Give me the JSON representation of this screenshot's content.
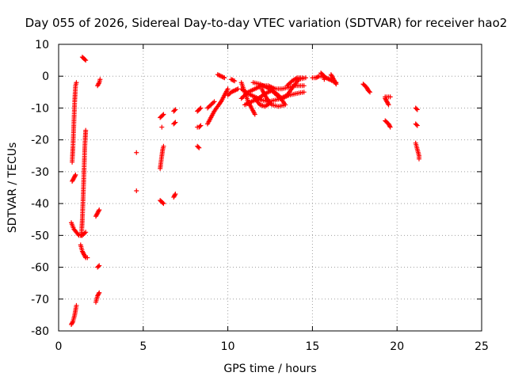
{
  "chart_data": {
    "type": "scatter",
    "title": "Day 055 of 2026, Sidereal Day-to-day VTEC variation (SDTVAR) for receiver hao2",
    "xlabel": "GPS time / hours",
    "ylabel": "SDTVAR / TECUs",
    "xlim": [
      0,
      25
    ],
    "ylim": [
      -80,
      10
    ],
    "xticks": [
      0,
      5,
      10,
      15,
      20,
      25
    ],
    "yticks": [
      10,
      0,
      -10,
      -20,
      -30,
      -40,
      -50,
      -60,
      -70,
      -80
    ],
    "grid": true,
    "marker": "+",
    "color": "#ff0000",
    "series": [
      {
        "name": "SDTVAR",
        "segments": [
          [
            [
              0.8,
              -27
            ],
            [
              0.85,
              -22
            ],
            [
              0.9,
              -15
            ],
            [
              0.95,
              -8
            ],
            [
              1.0,
              -3
            ],
            [
              1.05,
              -2
            ]
          ],
          [
            [
              0.8,
              -33
            ],
            [
              0.9,
              -32
            ],
            [
              1.0,
              -31
            ]
          ],
          [
            [
              0.75,
              -46
            ],
            [
              0.9,
              -48
            ],
            [
              1.05,
              -49
            ],
            [
              1.2,
              -50
            ],
            [
              1.4,
              -50
            ],
            [
              1.6,
              -49
            ]
          ],
          [
            [
              1.35,
              -50
            ],
            [
              1.4,
              -45
            ],
            [
              1.45,
              -38
            ],
            [
              1.5,
              -30
            ],
            [
              1.55,
              -22
            ],
            [
              1.6,
              -17
            ]
          ],
          [
            [
              1.3,
              -53
            ],
            [
              1.4,
              -55
            ],
            [
              1.5,
              -56
            ],
            [
              1.6,
              -57
            ],
            [
              1.7,
              -57
            ]
          ],
          [
            [
              0.75,
              -78
            ],
            [
              0.85,
              -77
            ],
            [
              0.95,
              -75
            ],
            [
              1.05,
              -72
            ]
          ],
          [
            [
              1.4,
              6
            ],
            [
              1.5,
              5.5
            ],
            [
              1.6,
              5
            ]
          ],
          [
            [
              2.3,
              -3
            ],
            [
              2.4,
              -2
            ],
            [
              2.45,
              -1
            ]
          ],
          [
            [
              2.2,
              -44
            ],
            [
              2.3,
              -43
            ],
            [
              2.4,
              -42
            ]
          ],
          [
            [
              2.3,
              -60
            ],
            [
              2.4,
              -59.5
            ]
          ],
          [
            [
              2.2,
              -71
            ],
            [
              2.3,
              -69
            ],
            [
              2.4,
              -68
            ]
          ],
          [
            [
              4.6,
              -24
            ]
          ],
          [
            [
              4.6,
              -36
            ]
          ],
          [
            [
              6.0,
              -13
            ],
            [
              6.1,
              -12.5
            ],
            [
              6.2,
              -12
            ]
          ],
          [
            [
              6.1,
              -16
            ]
          ],
          [
            [
              6.0,
              -29
            ],
            [
              6.05,
              -27
            ],
            [
              6.1,
              -25
            ],
            [
              6.15,
              -23
            ],
            [
              6.2,
              -22
            ]
          ],
          [
            [
              6.0,
              -39
            ],
            [
              6.1,
              -39.5
            ],
            [
              6.2,
              -40
            ]
          ],
          [
            [
              6.8,
              -11
            ],
            [
              6.9,
              -10.5
            ]
          ],
          [
            [
              6.8,
              -15
            ],
            [
              6.9,
              -14.5
            ]
          ],
          [
            [
              6.8,
              -38
            ],
            [
              6.9,
              -37
            ]
          ],
          [
            [
              8.2,
              -11
            ],
            [
              8.3,
              -10.5
            ],
            [
              8.4,
              -10
            ]
          ],
          [
            [
              8.2,
              -16
            ],
            [
              8.3,
              -16
            ],
            [
              8.4,
              -15.5
            ]
          ],
          [
            [
              8.2,
              -22
            ],
            [
              8.3,
              -22.5
            ]
          ],
          [
            [
              8.8,
              -15
            ],
            [
              9.0,
              -13
            ],
            [
              9.2,
              -11
            ],
            [
              9.4,
              -9.5
            ],
            [
              9.6,
              -8
            ],
            [
              9.8,
              -6
            ],
            [
              10.0,
              -4
            ]
          ],
          [
            [
              8.8,
              -10
            ],
            [
              9.0,
              -9
            ],
            [
              9.2,
              -8
            ]
          ],
          [
            [
              9.4,
              0.5
            ],
            [
              9.6,
              0
            ],
            [
              9.8,
              -0.5
            ]
          ],
          [
            [
              10.2,
              -1
            ],
            [
              10.4,
              -1.5
            ]
          ],
          [
            [
              10.0,
              -6
            ],
            [
              10.2,
              -5
            ],
            [
              10.4,
              -4.5
            ],
            [
              10.6,
              -4
            ]
          ],
          [
            [
              10.8,
              -2
            ],
            [
              11.0,
              -5
            ],
            [
              11.2,
              -8
            ],
            [
              11.4,
              -10
            ],
            [
              11.6,
              -12
            ]
          ],
          [
            [
              10.8,
              -7
            ],
            [
              11.2,
              -5
            ],
            [
              11.6,
              -4
            ],
            [
              12.0,
              -3
            ],
            [
              12.4,
              -3
            ],
            [
              12.8,
              -4
            ],
            [
              13.2,
              -4
            ],
            [
              13.6,
              -3.5
            ],
            [
              14.0,
              -3
            ],
            [
              14.5,
              -3
            ]
          ],
          [
            [
              10.8,
              -4
            ],
            [
              11.2,
              -5.5
            ],
            [
              11.6,
              -6.5
            ],
            [
              12.0,
              -7.5
            ],
            [
              12.4,
              -8
            ],
            [
              12.8,
              -7.5
            ],
            [
              13.2,
              -7
            ],
            [
              13.6,
              -6
            ],
            [
              14.0,
              -5.5
            ],
            [
              14.5,
              -5
            ]
          ],
          [
            [
              11.0,
              -9
            ],
            [
              11.4,
              -8
            ],
            [
              11.8,
              -7
            ],
            [
              12.2,
              -5.5
            ],
            [
              12.6,
              -4.5
            ],
            [
              13.0,
              -6
            ],
            [
              13.4,
              -9
            ],
            [
              13.0,
              -9.5
            ],
            [
              12.6,
              -9
            ],
            [
              12.3,
              -7
            ],
            [
              12.0,
              -4
            ]
          ],
          [
            [
              11.5,
              -2
            ],
            [
              11.9,
              -2.5
            ],
            [
              12.3,
              -3.5
            ],
            [
              12.7,
              -5
            ],
            [
              13.1,
              -7
            ],
            [
              13.5,
              -6
            ],
            [
              13.9,
              -3
            ],
            [
              14.2,
              -1
            ],
            [
              14.6,
              -0.5
            ]
          ],
          [
            [
              11.6,
              -7
            ],
            [
              11.9,
              -9
            ],
            [
              12.2,
              -9.5
            ],
            [
              12.5,
              -8.5
            ]
          ],
          [
            [
              13.5,
              -3
            ],
            [
              13.8,
              -1.5
            ],
            [
              14.1,
              -0.5
            ],
            [
              14.4,
              -0.5
            ]
          ],
          [
            [
              15.0,
              -0.5
            ],
            [
              15.2,
              -0.5
            ],
            [
              15.4,
              0
            ],
            [
              15.6,
              0
            ],
            [
              15.8,
              -0.5
            ],
            [
              16.0,
              -1
            ],
            [
              16.2,
              -1.5
            ],
            [
              16.4,
              -2
            ]
          ],
          [
            [
              15.5,
              1
            ],
            [
              15.6,
              0.5
            ],
            [
              15.7,
              0
            ],
            [
              15.7,
              -1
            ]
          ],
          [
            [
              16.1,
              0.5
            ],
            [
              16.2,
              -0.5
            ],
            [
              16.3,
              -1.5
            ],
            [
              16.4,
              -2.5
            ]
          ],
          [
            [
              18.0,
              -2.5
            ],
            [
              18.1,
              -3
            ],
            [
              18.2,
              -3.5
            ],
            [
              18.3,
              -4.5
            ],
            [
              18.4,
              -5
            ]
          ],
          [
            [
              19.3,
              -7
            ],
            [
              19.4,
              -8
            ],
            [
              19.5,
              -9
            ]
          ],
          [
            [
              19.3,
              -6.5
            ],
            [
              19.5,
              -6.5
            ],
            [
              19.6,
              -6.5
            ]
          ],
          [
            [
              19.3,
              -14
            ],
            [
              19.4,
              -14.5
            ],
            [
              19.5,
              -15
            ],
            [
              19.6,
              -16
            ]
          ],
          [
            [
              21.1,
              -10
            ],
            [
              21.2,
              -10.5
            ]
          ],
          [
            [
              21.1,
              -15
            ],
            [
              21.2,
              -15.5
            ]
          ],
          [
            [
              21.1,
              -21
            ],
            [
              21.15,
              -22
            ],
            [
              21.2,
              -23
            ],
            [
              21.25,
              -24
            ],
            [
              21.3,
              -25
            ],
            [
              21.3,
              -26
            ]
          ]
        ]
      }
    ]
  }
}
